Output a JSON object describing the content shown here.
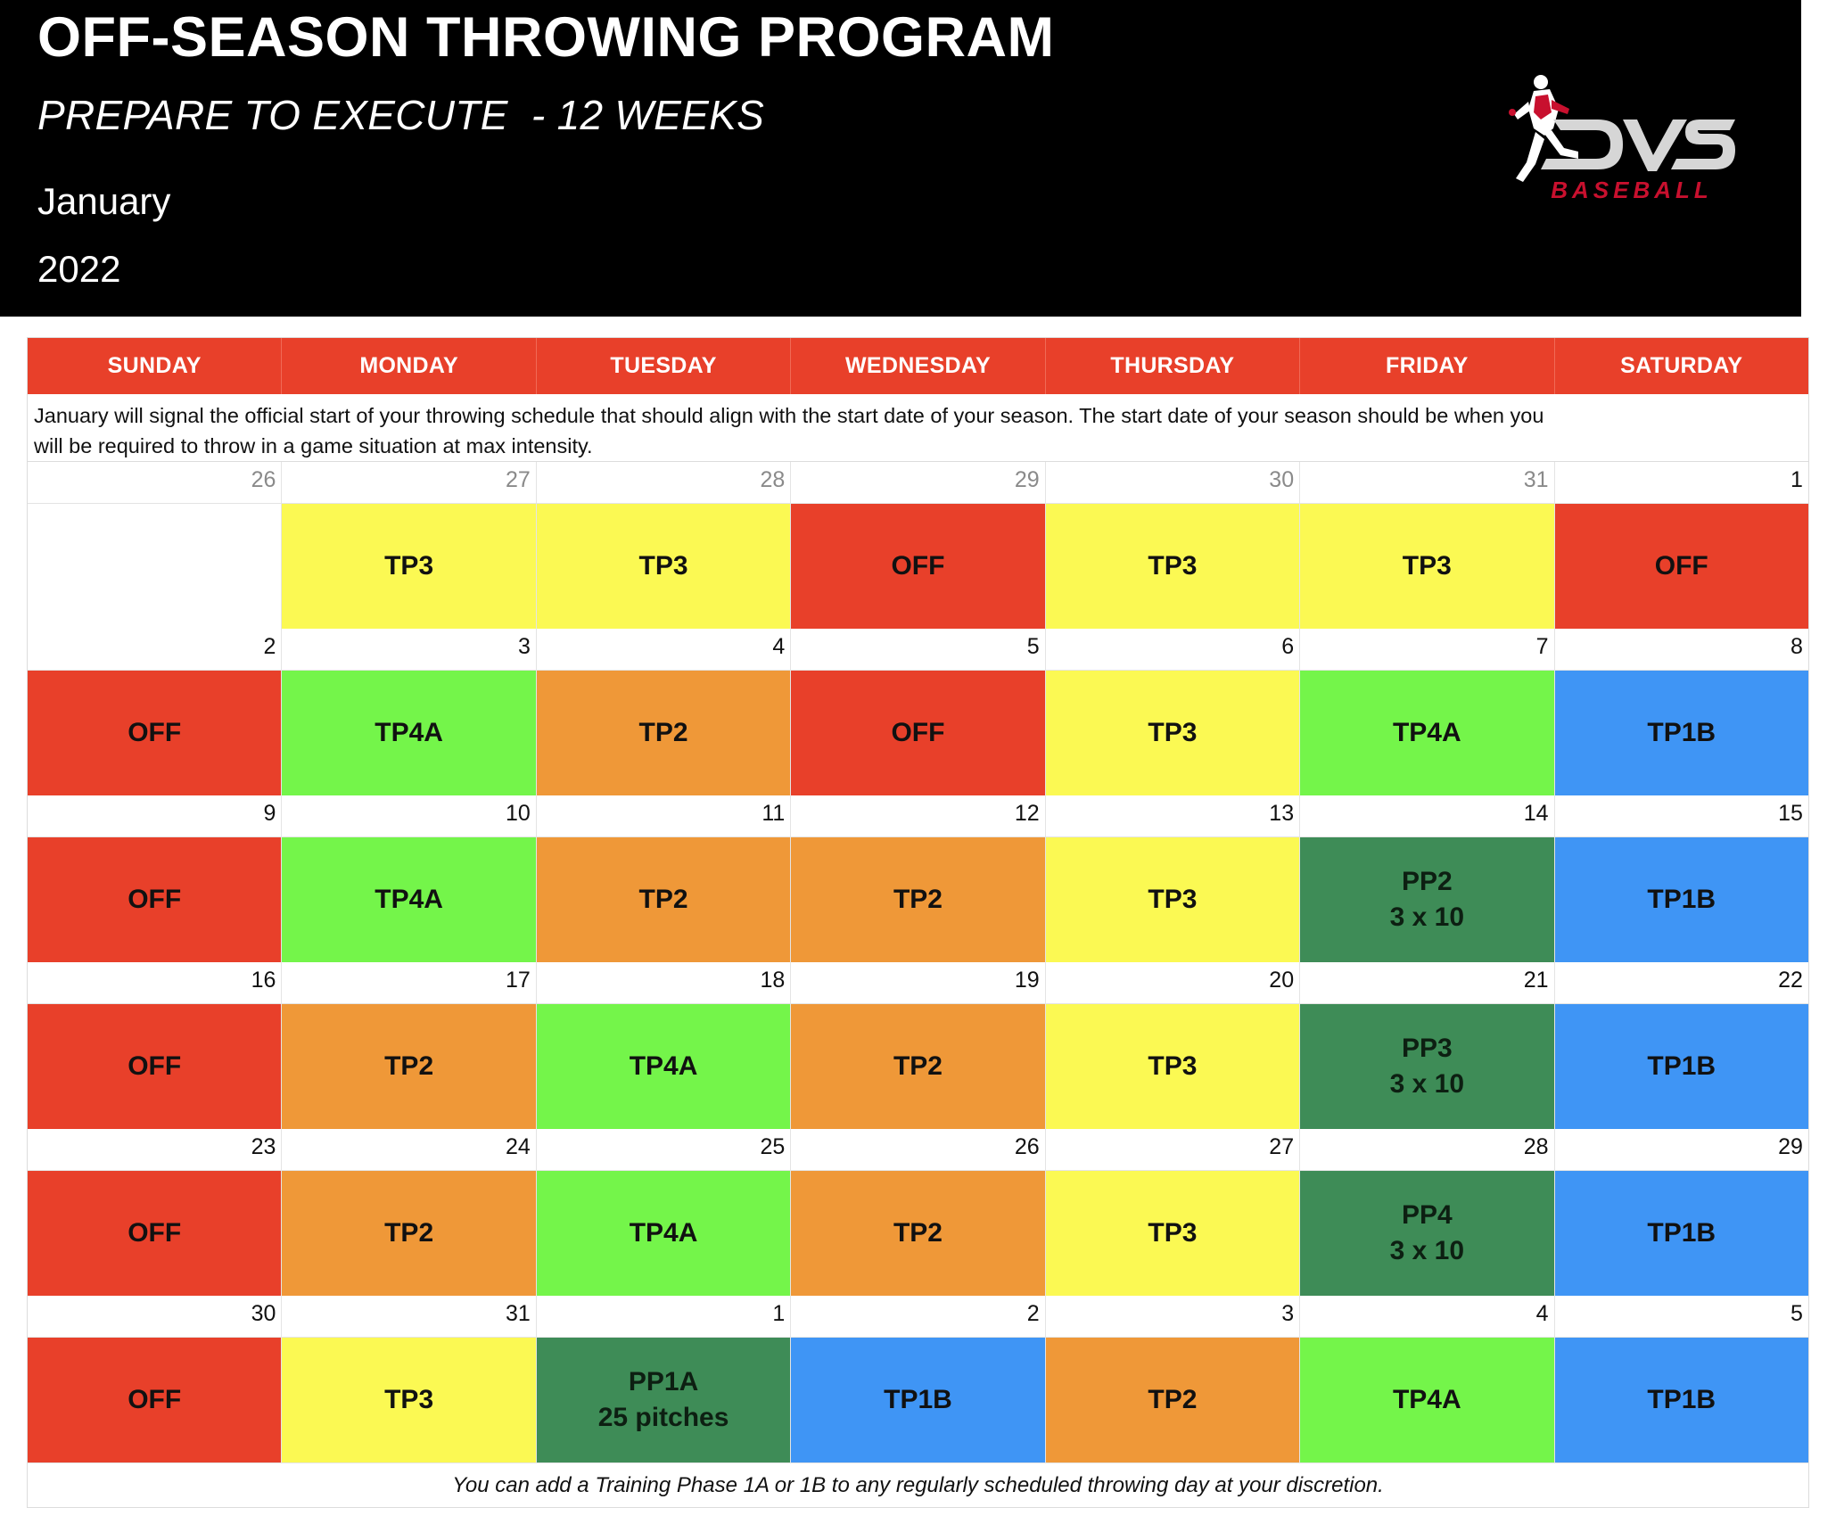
{
  "header": {
    "title": "OFF-SEASON THROWING PROGRAM",
    "subtitle": "PREPARE TO EXECUTE  - 12 WEEKS",
    "month": "January",
    "year": "2022",
    "logo_text": "DVS",
    "logo_subtext": "BASEBALL"
  },
  "colors": {
    "OFF": "#e8402a",
    "TP1B": "#3f95f5",
    "TP2": "#ef9838",
    "TP3": "#fbf953",
    "TP4A": "#74f54a",
    "PP": "#3e8c57",
    "empty": "#ffffff"
  },
  "calendar": {
    "days": [
      "SUNDAY",
      "MONDAY",
      "TUESDAY",
      "WEDNESDAY",
      "THURSDAY",
      "FRIDAY",
      "SATURDAY"
    ],
    "intro": "January will signal the official start of your throwing schedule that should align with the start date of your season. The start date of your season should be when you will be required to throw in a game situation at max intensity.",
    "intro_line1": "January will signal the official start of your throwing schedule that should align with the start date of your season. The start date of your season should be when you",
    "intro_line2": "will be required to throw in a game situation at max intensity.",
    "weeks": [
      {
        "dates": [
          "26",
          "27",
          "28",
          "29",
          "30",
          "31",
          "1"
        ],
        "dim": [
          true,
          true,
          true,
          true,
          true,
          true,
          false
        ],
        "blocks": [
          {
            "type": "empty",
            "line1": "",
            "line2": ""
          },
          {
            "type": "TP3",
            "line1": "TP3",
            "line2": ""
          },
          {
            "type": "TP3",
            "line1": "TP3",
            "line2": ""
          },
          {
            "type": "OFF",
            "line1": "OFF",
            "line2": ""
          },
          {
            "type": "TP3",
            "line1": "TP3",
            "line2": ""
          },
          {
            "type": "TP3",
            "line1": "TP3",
            "line2": ""
          },
          {
            "type": "OFF",
            "line1": "OFF",
            "line2": ""
          }
        ]
      },
      {
        "dates": [
          "2",
          "3",
          "4",
          "5",
          "6",
          "7",
          "8"
        ],
        "dim": [
          false,
          false,
          false,
          false,
          false,
          false,
          false
        ],
        "blocks": [
          {
            "type": "OFF",
            "line1": "OFF",
            "line2": ""
          },
          {
            "type": "TP4A",
            "line1": "TP4A",
            "line2": ""
          },
          {
            "type": "TP2",
            "line1": "TP2",
            "line2": ""
          },
          {
            "type": "OFF",
            "line1": "OFF",
            "line2": ""
          },
          {
            "type": "TP3",
            "line1": "TP3",
            "line2": ""
          },
          {
            "type": "TP4A",
            "line1": "TP4A",
            "line2": ""
          },
          {
            "type": "TP1B",
            "line1": "TP1B",
            "line2": ""
          }
        ]
      },
      {
        "dates": [
          "9",
          "10",
          "11",
          "12",
          "13",
          "14",
          "15"
        ],
        "dim": [
          false,
          false,
          false,
          false,
          false,
          false,
          false
        ],
        "blocks": [
          {
            "type": "OFF",
            "line1": "OFF",
            "line2": ""
          },
          {
            "type": "TP4A",
            "line1": "TP4A",
            "line2": ""
          },
          {
            "type": "TP2",
            "line1": "TP2",
            "line2": ""
          },
          {
            "type": "TP2",
            "line1": "TP2",
            "line2": ""
          },
          {
            "type": "TP3",
            "line1": "TP3",
            "line2": ""
          },
          {
            "type": "PP",
            "line1": "PP2",
            "line2": "3 x 10"
          },
          {
            "type": "TP1B",
            "line1": "TP1B",
            "line2": ""
          }
        ]
      },
      {
        "dates": [
          "16",
          "17",
          "18",
          "19",
          "20",
          "21",
          "22"
        ],
        "dim": [
          false,
          false,
          false,
          false,
          false,
          false,
          false
        ],
        "blocks": [
          {
            "type": "OFF",
            "line1": "OFF",
            "line2": ""
          },
          {
            "type": "TP2",
            "line1": "TP2",
            "line2": ""
          },
          {
            "type": "TP4A",
            "line1": "TP4A",
            "line2": ""
          },
          {
            "type": "TP2",
            "line1": "TP2",
            "line2": ""
          },
          {
            "type": "TP3",
            "line1": "TP3",
            "line2": ""
          },
          {
            "type": "PP",
            "line1": "PP3",
            "line2": "3 x 10"
          },
          {
            "type": "TP1B",
            "line1": "TP1B",
            "line2": ""
          }
        ]
      },
      {
        "dates": [
          "23",
          "24",
          "25",
          "26",
          "27",
          "28",
          "29"
        ],
        "dim": [
          false,
          false,
          false,
          false,
          false,
          false,
          false
        ],
        "blocks": [
          {
            "type": "OFF",
            "line1": "OFF",
            "line2": ""
          },
          {
            "type": "TP2",
            "line1": "TP2",
            "line2": ""
          },
          {
            "type": "TP4A",
            "line1": "TP4A",
            "line2": ""
          },
          {
            "type": "TP2",
            "line1": "TP2",
            "line2": ""
          },
          {
            "type": "TP3",
            "line1": "TP3",
            "line2": ""
          },
          {
            "type": "PP",
            "line1": "PP4",
            "line2": "3 x 10"
          },
          {
            "type": "TP1B",
            "line1": "TP1B",
            "line2": ""
          }
        ]
      },
      {
        "dates": [
          "30",
          "31",
          "1",
          "2",
          "3",
          "4",
          "5"
        ],
        "dim": [
          false,
          false,
          false,
          false,
          false,
          false,
          false
        ],
        "blocks": [
          {
            "type": "OFF",
            "line1": "OFF",
            "line2": ""
          },
          {
            "type": "TP3",
            "line1": "TP3",
            "line2": ""
          },
          {
            "type": "PP",
            "line1": "PP1A",
            "line2": "25 pitches"
          },
          {
            "type": "TP1B",
            "line1": "TP1B",
            "line2": ""
          },
          {
            "type": "TP2",
            "line1": "TP2",
            "line2": ""
          },
          {
            "type": "TP4A",
            "line1": "TP4A",
            "line2": ""
          },
          {
            "type": "TP1B",
            "line1": "TP1B",
            "line2": ""
          }
        ]
      }
    ],
    "footer": "You can add a Training Phase 1A or 1B to any regularly scheduled throwing day at your discretion."
  }
}
